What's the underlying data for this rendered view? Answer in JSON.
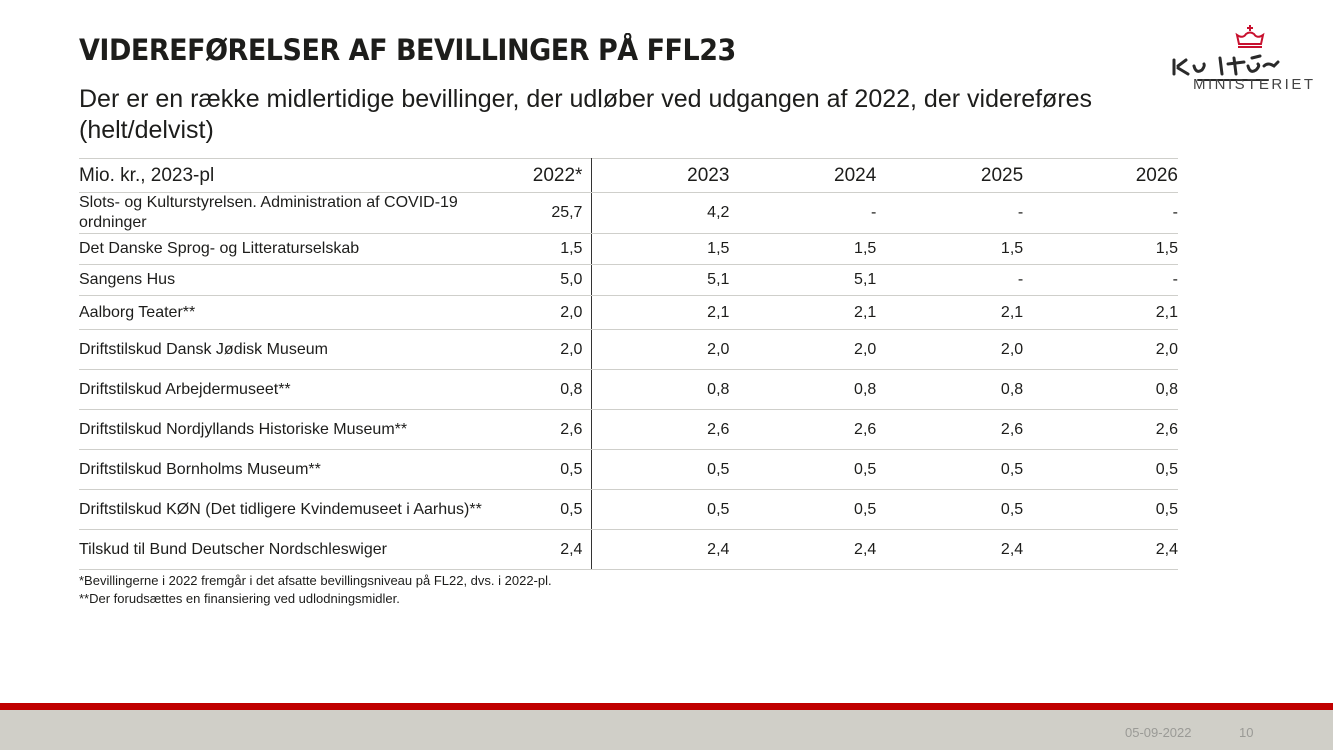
{
  "header": {
    "title": "VIDEREFØRELSER AF BEVILLINGER PÅ FFL23",
    "subtitle": "Der er en række midlertidige bevillinger, der udløber ved udgangen af 2022, der videreføres (helt/delvist)"
  },
  "logo": {
    "wordmark": "Kultur",
    "text": "MINISTERIET",
    "crown_color": "#c8102e"
  },
  "table": {
    "columns": [
      "Mio. kr., 2023-pl",
      "2022*",
      "2023",
      "2024",
      "2025",
      "2026"
    ],
    "rows": [
      {
        "label": "Slots- og Kulturstyrelsen. Administration af COVID-19 ordninger",
        "values": [
          "25,7",
          "4,2",
          "-",
          "-",
          "-"
        ]
      },
      {
        "label": "Det Danske Sprog- og Litteraturselskab",
        "values": [
          "1,5",
          "1,5",
          "1,5",
          "1,5",
          "1,5"
        ]
      },
      {
        "label": "Sangens Hus",
        "values": [
          "5,0",
          "5,1",
          "5,1",
          "-",
          "-"
        ]
      },
      {
        "label": "Aalborg Teater**",
        "values": [
          "2,0",
          "2,1",
          "2,1",
          "2,1",
          "2,1"
        ]
      },
      {
        "label": "Driftstilskud Dansk Jødisk Museum",
        "values": [
          "2,0",
          "2,0",
          "2,0",
          "2,0",
          "2,0"
        ]
      },
      {
        "label": "Driftstilskud Arbejdermuseet**",
        "values": [
          "0,8",
          "0,8",
          "0,8",
          "0,8",
          "0,8"
        ]
      },
      {
        "label": "Driftstilskud Nordjyllands Historiske Museum**",
        "values": [
          "2,6",
          "2,6",
          "2,6",
          "2,6",
          "2,6"
        ]
      },
      {
        "label": "Driftstilskud Bornholms Museum**",
        "values": [
          "0,5",
          "0,5",
          "0,5",
          "0,5",
          "0,5"
        ]
      },
      {
        "label": "Driftstilskud KØN (Det tidligere Kvindemuseet i Aarhus)**",
        "values": [
          "0,5",
          "0,5",
          "0,5",
          "0,5",
          "0,5"
        ]
      },
      {
        "label": "Tilskud til Bund Deutscher Nordschleswiger",
        "values": [
          "2,4",
          "2,4",
          "2,4",
          "2,4",
          "2,4"
        ]
      }
    ]
  },
  "footnotes": [
    "*Bevillingerne i 2022 fremgår i det afsatte bevillingsniveau på FL22, dvs. i 2022-pl.",
    "**Der forudsættes en finansiering ved udlodningsmidler."
  ],
  "footer": {
    "date": "05-09-2022",
    "page_number": "10",
    "accent_color": "#c00000",
    "band_color": "#d0cfc8"
  }
}
